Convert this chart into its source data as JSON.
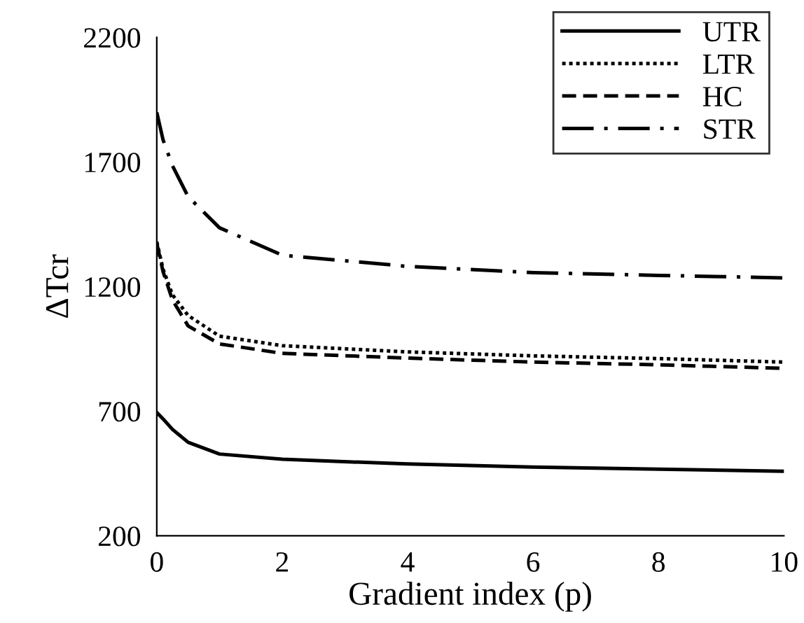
{
  "chart_data": {
    "type": "line",
    "xlabel": "Gradient index (p)",
    "ylabel": "ΔTcr",
    "x": [
      0,
      0.1,
      0.25,
      0.5,
      1,
      2,
      4,
      6,
      8,
      10
    ],
    "series": [
      {
        "name": "UTR",
        "color": "#000000",
        "line_style": "solid",
        "values": [
          695,
          669,
          627,
          575,
          528,
          507,
          488,
          476,
          467,
          459
        ]
      },
      {
        "name": "LTR",
        "color": "#000000",
        "line_style": "dotted",
        "values": [
          1380,
          1270,
          1167,
          1084,
          1001,
          963,
          938,
          922,
          911,
          897
        ]
      },
      {
        "name": "HC",
        "color": "#000000",
        "line_style": "dashed",
        "values": [
          1374,
          1260,
          1146,
          1042,
          970,
          932,
          913,
          897,
          886,
          872
        ]
      },
      {
        "name": "STR",
        "color": "#000000",
        "line_style": "dashdot",
        "values": [
          1899,
          1789,
          1685,
          1561,
          1436,
          1326,
          1281,
          1256,
          1245,
          1235
        ]
      }
    ],
    "xlim": [
      0,
      10
    ],
    "xticks": [
      0,
      2,
      4,
      6,
      8,
      10
    ],
    "ylim": [
      200,
      2200
    ],
    "yticks": [
      200,
      700,
      1200,
      1700,
      2200
    ],
    "grid": false,
    "legend": "top right",
    "marker": "none"
  }
}
